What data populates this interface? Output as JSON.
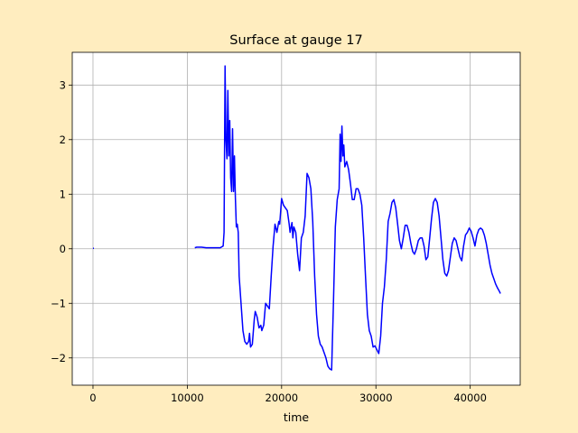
{
  "chart_data": {
    "type": "line",
    "title": "Surface at gauge 17",
    "xlabel": "time",
    "ylabel": "",
    "xlim": [
      -2200,
      45300
    ],
    "ylim": [
      -2.5,
      3.6
    ],
    "xticks": [
      0,
      10000,
      20000,
      30000,
      40000
    ],
    "xtick_labels": [
      "0",
      "10000",
      "20000",
      "30000",
      "40000"
    ],
    "yticks": [
      -2,
      -1,
      0,
      1,
      2,
      3
    ],
    "ytick_labels": [
      "−2",
      "−1",
      "0",
      "1",
      "2",
      "3"
    ],
    "grid": true,
    "series": [
      {
        "name": "",
        "color": "#0000ff",
        "segments": [
          [
            [
              0,
              0.01
            ],
            [
              100,
              0.01
            ]
          ],
          [
            [
              10800,
              0.02
            ],
            [
              11000,
              0.03
            ],
            [
              11500,
              0.03
            ],
            [
              12000,
              0.02
            ],
            [
              12500,
              0.02
            ],
            [
              13000,
              0.02
            ],
            [
              13500,
              0.02
            ],
            [
              13800,
              0.05
            ],
            [
              13900,
              0.3
            ],
            [
              14000,
              3.35
            ],
            [
              14100,
              2.0
            ],
            [
              14200,
              1.65
            ],
            [
              14300,
              2.9
            ],
            [
              14400,
              1.7
            ],
            [
              14500,
              2.35
            ],
            [
              14600,
              1.3
            ],
            [
              14700,
              1.05
            ],
            [
              14800,
              2.2
            ],
            [
              14900,
              1.05
            ],
            [
              15000,
              1.7
            ],
            [
              15100,
              0.95
            ],
            [
              15200,
              0.4
            ],
            [
              15300,
              0.45
            ],
            [
              15400,
              0.3
            ],
            [
              15500,
              -0.5
            ],
            [
              15700,
              -1.0
            ],
            [
              15900,
              -1.5
            ],
            [
              16100,
              -1.7
            ],
            [
              16300,
              -1.75
            ],
            [
              16500,
              -1.7
            ],
            [
              16600,
              -1.55
            ],
            [
              16700,
              -1.8
            ],
            [
              16900,
              -1.75
            ],
            [
              17100,
              -1.3
            ],
            [
              17200,
              -1.15
            ],
            [
              17400,
              -1.25
            ],
            [
              17600,
              -1.45
            ],
            [
              17800,
              -1.4
            ],
            [
              17900,
              -1.5
            ],
            [
              18100,
              -1.4
            ],
            [
              18300,
              -1.0
            ],
            [
              18500,
              -1.05
            ],
            [
              18700,
              -1.1
            ],
            [
              18900,
              -0.5
            ],
            [
              19100,
              0.05
            ],
            [
              19300,
              0.45
            ],
            [
              19500,
              0.3
            ],
            [
              19700,
              0.5
            ],
            [
              19800,
              0.45
            ],
            [
              20000,
              0.92
            ],
            [
              20200,
              0.8
            ],
            [
              20400,
              0.75
            ],
            [
              20600,
              0.7
            ],
            [
              20800,
              0.45
            ],
            [
              20900,
              0.3
            ],
            [
              21100,
              0.48
            ],
            [
              21200,
              0.2
            ],
            [
              21300,
              0.4
            ],
            [
              21500,
              0.3
            ],
            [
              21700,
              -0.1
            ],
            [
              21900,
              -0.4
            ],
            [
              22100,
              0.2
            ],
            [
              22300,
              0.3
            ],
            [
              22500,
              0.6
            ],
            [
              22700,
              1.38
            ],
            [
              22900,
              1.3
            ],
            [
              23100,
              1.1
            ],
            [
              23300,
              0.5
            ],
            [
              23500,
              -0.5
            ],
            [
              23700,
              -1.2
            ],
            [
              23900,
              -1.6
            ],
            [
              24100,
              -1.75
            ],
            [
              24300,
              -1.8
            ],
            [
              24500,
              -1.9
            ],
            [
              24700,
              -2.0
            ],
            [
              24900,
              -2.15
            ],
            [
              25100,
              -2.2
            ],
            [
              25300,
              -2.22
            ],
            [
              25500,
              -1.0
            ],
            [
              25700,
              0.4
            ],
            [
              25900,
              0.9
            ],
            [
              26100,
              1.1
            ],
            [
              26200,
              2.1
            ],
            [
              26300,
              1.6
            ],
            [
              26400,
              2.25
            ],
            [
              26500,
              1.7
            ],
            [
              26600,
              1.9
            ],
            [
              26700,
              1.5
            ],
            [
              26900,
              1.6
            ],
            [
              27100,
              1.45
            ],
            [
              27300,
              1.2
            ],
            [
              27500,
              0.9
            ],
            [
              27700,
              0.9
            ],
            [
              27900,
              1.1
            ],
            [
              28100,
              1.1
            ],
            [
              28300,
              1.0
            ],
            [
              28500,
              0.8
            ],
            [
              28700,
              0.2
            ],
            [
              28900,
              -0.5
            ],
            [
              29100,
              -1.2
            ],
            [
              29300,
              -1.5
            ],
            [
              29500,
              -1.6
            ],
            [
              29700,
              -1.8
            ],
            [
              29900,
              -1.78
            ],
            [
              30100,
              -1.85
            ],
            [
              30300,
              -1.92
            ],
            [
              30500,
              -1.6
            ],
            [
              30700,
              -1.0
            ],
            [
              30900,
              -0.7
            ],
            [
              31100,
              -0.2
            ],
            [
              31300,
              0.5
            ],
            [
              31500,
              0.65
            ],
            [
              31700,
              0.85
            ],
            [
              31900,
              0.9
            ],
            [
              32100,
              0.75
            ],
            [
              32300,
              0.45
            ],
            [
              32500,
              0.15
            ],
            [
              32700,
              0.0
            ],
            [
              32900,
              0.2
            ],
            [
              33100,
              0.43
            ],
            [
              33300,
              0.43
            ],
            [
              33500,
              0.3
            ],
            [
              33700,
              0.1
            ],
            [
              33900,
              -0.05
            ],
            [
              34100,
              -0.1
            ],
            [
              34300,
              0.0
            ],
            [
              34500,
              0.15
            ],
            [
              34700,
              0.2
            ],
            [
              34900,
              0.2
            ],
            [
              35100,
              0.05
            ],
            [
              35300,
              -0.2
            ],
            [
              35500,
              -0.15
            ],
            [
              35700,
              0.2
            ],
            [
              35900,
              0.55
            ],
            [
              36100,
              0.85
            ],
            [
              36300,
              0.92
            ],
            [
              36500,
              0.85
            ],
            [
              36700,
              0.6
            ],
            [
              36900,
              0.2
            ],
            [
              37100,
              -0.2
            ],
            [
              37300,
              -0.45
            ],
            [
              37500,
              -0.5
            ],
            [
              37700,
              -0.4
            ],
            [
              37900,
              -0.15
            ],
            [
              38100,
              0.1
            ],
            [
              38300,
              0.2
            ],
            [
              38500,
              0.15
            ],
            [
              38700,
              0.0
            ],
            [
              38900,
              -0.15
            ],
            [
              39100,
              -0.22
            ],
            [
              39300,
              0.05
            ],
            [
              39500,
              0.25
            ],
            [
              39700,
              0.3
            ],
            [
              39900,
              0.38
            ],
            [
              40100,
              0.32
            ],
            [
              40300,
              0.2
            ],
            [
              40500,
              0.05
            ],
            [
              40700,
              0.25
            ],
            [
              40900,
              0.35
            ],
            [
              41100,
              0.38
            ],
            [
              41300,
              0.35
            ],
            [
              41500,
              0.25
            ],
            [
              41700,
              0.1
            ],
            [
              41900,
              -0.1
            ],
            [
              42100,
              -0.3
            ],
            [
              42300,
              -0.45
            ],
            [
              42500,
              -0.55
            ],
            [
              42700,
              -0.65
            ],
            [
              42900,
              -0.72
            ],
            [
              43100,
              -0.78
            ],
            [
              43200,
              -0.82
            ]
          ]
        ]
      }
    ]
  }
}
